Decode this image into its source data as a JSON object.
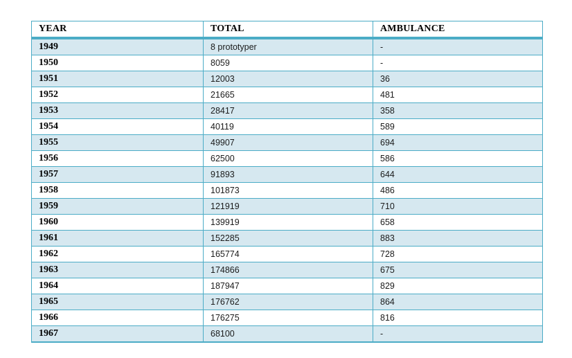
{
  "table": {
    "columns": [
      {
        "key": "year",
        "label": "YEAR"
      },
      {
        "key": "total",
        "label": "TOTAL"
      },
      {
        "key": "ambulance",
        "label": "AMBULANCE"
      }
    ],
    "rows": [
      {
        "year": "1949",
        "total": "8 prototyper",
        "ambulance": "-"
      },
      {
        "year": "1950",
        "total": "8059",
        "ambulance": "-"
      },
      {
        "year": "1951",
        "total": "12003",
        "ambulance": "36"
      },
      {
        "year": "1952",
        "total": "21665",
        "ambulance": "481"
      },
      {
        "year": "1953",
        "total": "28417",
        "ambulance": "358"
      },
      {
        "year": "1954",
        "total": "40119",
        "ambulance": "589"
      },
      {
        "year": "1955",
        "total": "49907",
        "ambulance": "694"
      },
      {
        "year": "1956",
        "total": "62500",
        "ambulance": "586"
      },
      {
        "year": "1957",
        "total": "91893",
        "ambulance": "644"
      },
      {
        "year": "1958",
        "total": "101873",
        "ambulance": "486"
      },
      {
        "year": "1959",
        "total": "121919",
        "ambulance": "710"
      },
      {
        "year": "1960",
        "total": "139919",
        "ambulance": "658"
      },
      {
        "year": "1961",
        "total": "152285",
        "ambulance": "883"
      },
      {
        "year": "1962",
        "total": "165774",
        "ambulance": "728"
      },
      {
        "year": "1963",
        "total": "174866",
        "ambulance": "675"
      },
      {
        "year": "1964",
        "total": "187947",
        "ambulance": "829"
      },
      {
        "year": "1965",
        "total": "176762",
        "ambulance": "864"
      },
      {
        "year": "1966",
        "total": "176275",
        "ambulance": "816"
      },
      {
        "year": "1967",
        "total": "68100",
        "ambulance": "-"
      }
    ],
    "colors": {
      "border": "#4bacc6",
      "header_rule": "#4bacc6",
      "row_band": "#d6e8f0",
      "row_plain": "#ffffff",
      "text": "#1b1b1b"
    }
  }
}
